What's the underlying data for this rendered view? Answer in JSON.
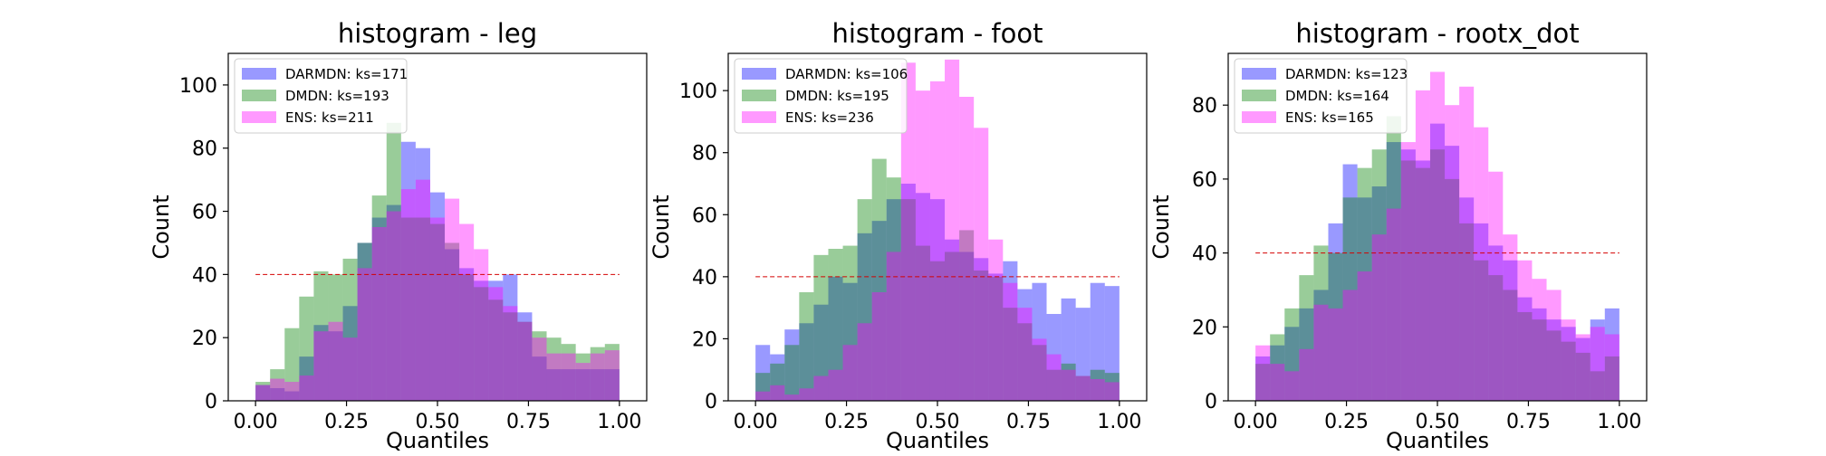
{
  "colors": {
    "DARMDN": "#0000ff",
    "DMDN": "#008000",
    "ENS": "#ff00ff",
    "reference_line": "#d40000",
    "bar_opacity": 0.4
  },
  "chart_data": [
    {
      "type": "bar",
      "title": "histogram - leg",
      "xlabel": "Quantiles",
      "ylabel": "Count",
      "xlim": [
        -0.075,
        1.075
      ],
      "ylim": [
        0,
        110
      ],
      "xticks": [
        "0.00",
        "0.25",
        "0.50",
        "0.75",
        "1.00"
      ],
      "yticks": [
        "0",
        "20",
        "40",
        "60",
        "80",
        "100"
      ],
      "legend_position": "top-left",
      "reference_line": 40,
      "bin_count": 25,
      "series": [
        {
          "name": "DARMDN: ks=171",
          "key": "DARMDN",
          "values": [
            5,
            4,
            3,
            14,
            24,
            22,
            30,
            50,
            58,
            62,
            82,
            80,
            66,
            48,
            42,
            38,
            38,
            40,
            28,
            14,
            10,
            10,
            10,
            10,
            10
          ]
        },
        {
          "name": "DMDN: ks=193",
          "key": "DMDN",
          "values": [
            6,
            10,
            23,
            33,
            41,
            40,
            45,
            50,
            65,
            88,
            58,
            58,
            56,
            50,
            40,
            36,
            32,
            28,
            25,
            22,
            20,
            18,
            15,
            17,
            18
          ]
        },
        {
          "name": "ENS: ks=211",
          "key": "ENS",
          "values": [
            5,
            7,
            6,
            8,
            22,
            25,
            20,
            42,
            55,
            60,
            67,
            70,
            58,
            64,
            56,
            48,
            36,
            30,
            25,
            20,
            15,
            15,
            12,
            15,
            16
          ]
        }
      ]
    },
    {
      "type": "bar",
      "title": "histogram - foot",
      "xlabel": "Quantiles",
      "ylabel": "Count",
      "xlim": [
        -0.075,
        1.075
      ],
      "ylim": [
        0,
        112
      ],
      "xticks": [
        "0.00",
        "0.25",
        "0.50",
        "0.75",
        "1.00"
      ],
      "yticks": [
        "0",
        "20",
        "40",
        "60",
        "80",
        "100"
      ],
      "legend_position": "top-left",
      "reference_line": 40,
      "bin_count": 25,
      "series": [
        {
          "name": "DARMDN: ks=106",
          "key": "DARMDN",
          "values": [
            18,
            15,
            23,
            25,
            31,
            40,
            38,
            54,
            58,
            65,
            70,
            67,
            65,
            52,
            48,
            46,
            41,
            45,
            36,
            38,
            28,
            33,
            30,
            38,
            37
          ]
        },
        {
          "name": "DMDN: ks=195",
          "key": "DMDN",
          "values": [
            9,
            12,
            18,
            35,
            47,
            49,
            50,
            65,
            78,
            72,
            65,
            50,
            45,
            48,
            55,
            42,
            40,
            30,
            25,
            18,
            10,
            12,
            8,
            10,
            9
          ]
        },
        {
          "name": "ENS: ks=236",
          "key": "ENS",
          "values": [
            3,
            5,
            2,
            4,
            8,
            10,
            18,
            25,
            35,
            48,
            109,
            100,
            103,
            110,
            98,
            88,
            52,
            38,
            30,
            20,
            15,
            10,
            8,
            7,
            6
          ]
        }
      ]
    },
    {
      "type": "bar",
      "title": "histogram - rootx_dot",
      "xlabel": "Quantiles",
      "ylabel": "Count",
      "xlim": [
        -0.075,
        1.075
      ],
      "ylim": [
        0,
        94
      ],
      "xticks": [
        "0.00",
        "0.25",
        "0.50",
        "0.75",
        "1.00"
      ],
      "yticks": [
        "0",
        "20",
        "40",
        "60",
        "80"
      ],
      "legend_position": "top-left",
      "reference_line": 40,
      "bin_count": 25,
      "series": [
        {
          "name": "DARMDN: ks=123",
          "key": "DARMDN",
          "values": [
            12,
            15,
            20,
            25,
            30,
            48,
            64,
            55,
            58,
            70,
            68,
            65,
            75,
            69,
            55,
            48,
            42,
            38,
            28,
            25,
            22,
            20,
            17,
            22,
            25
          ]
        },
        {
          "name": "DMDN: ks=164",
          "key": "DMDN",
          "values": [
            10,
            18,
            25,
            34,
            42,
            40,
            55,
            63,
            68,
            77,
            65,
            63,
            68,
            60,
            48,
            38,
            34,
            30,
            24,
            22,
            19,
            16,
            13,
            8,
            12
          ]
        },
        {
          "name": "ENS: ks=165",
          "key": "ENS",
          "values": [
            15,
            10,
            8,
            14,
            26,
            25,
            30,
            35,
            45,
            52,
            70,
            84,
            89,
            80,
            85,
            74,
            62,
            45,
            38,
            33,
            30,
            22,
            18,
            20,
            18
          ]
        }
      ]
    }
  ]
}
